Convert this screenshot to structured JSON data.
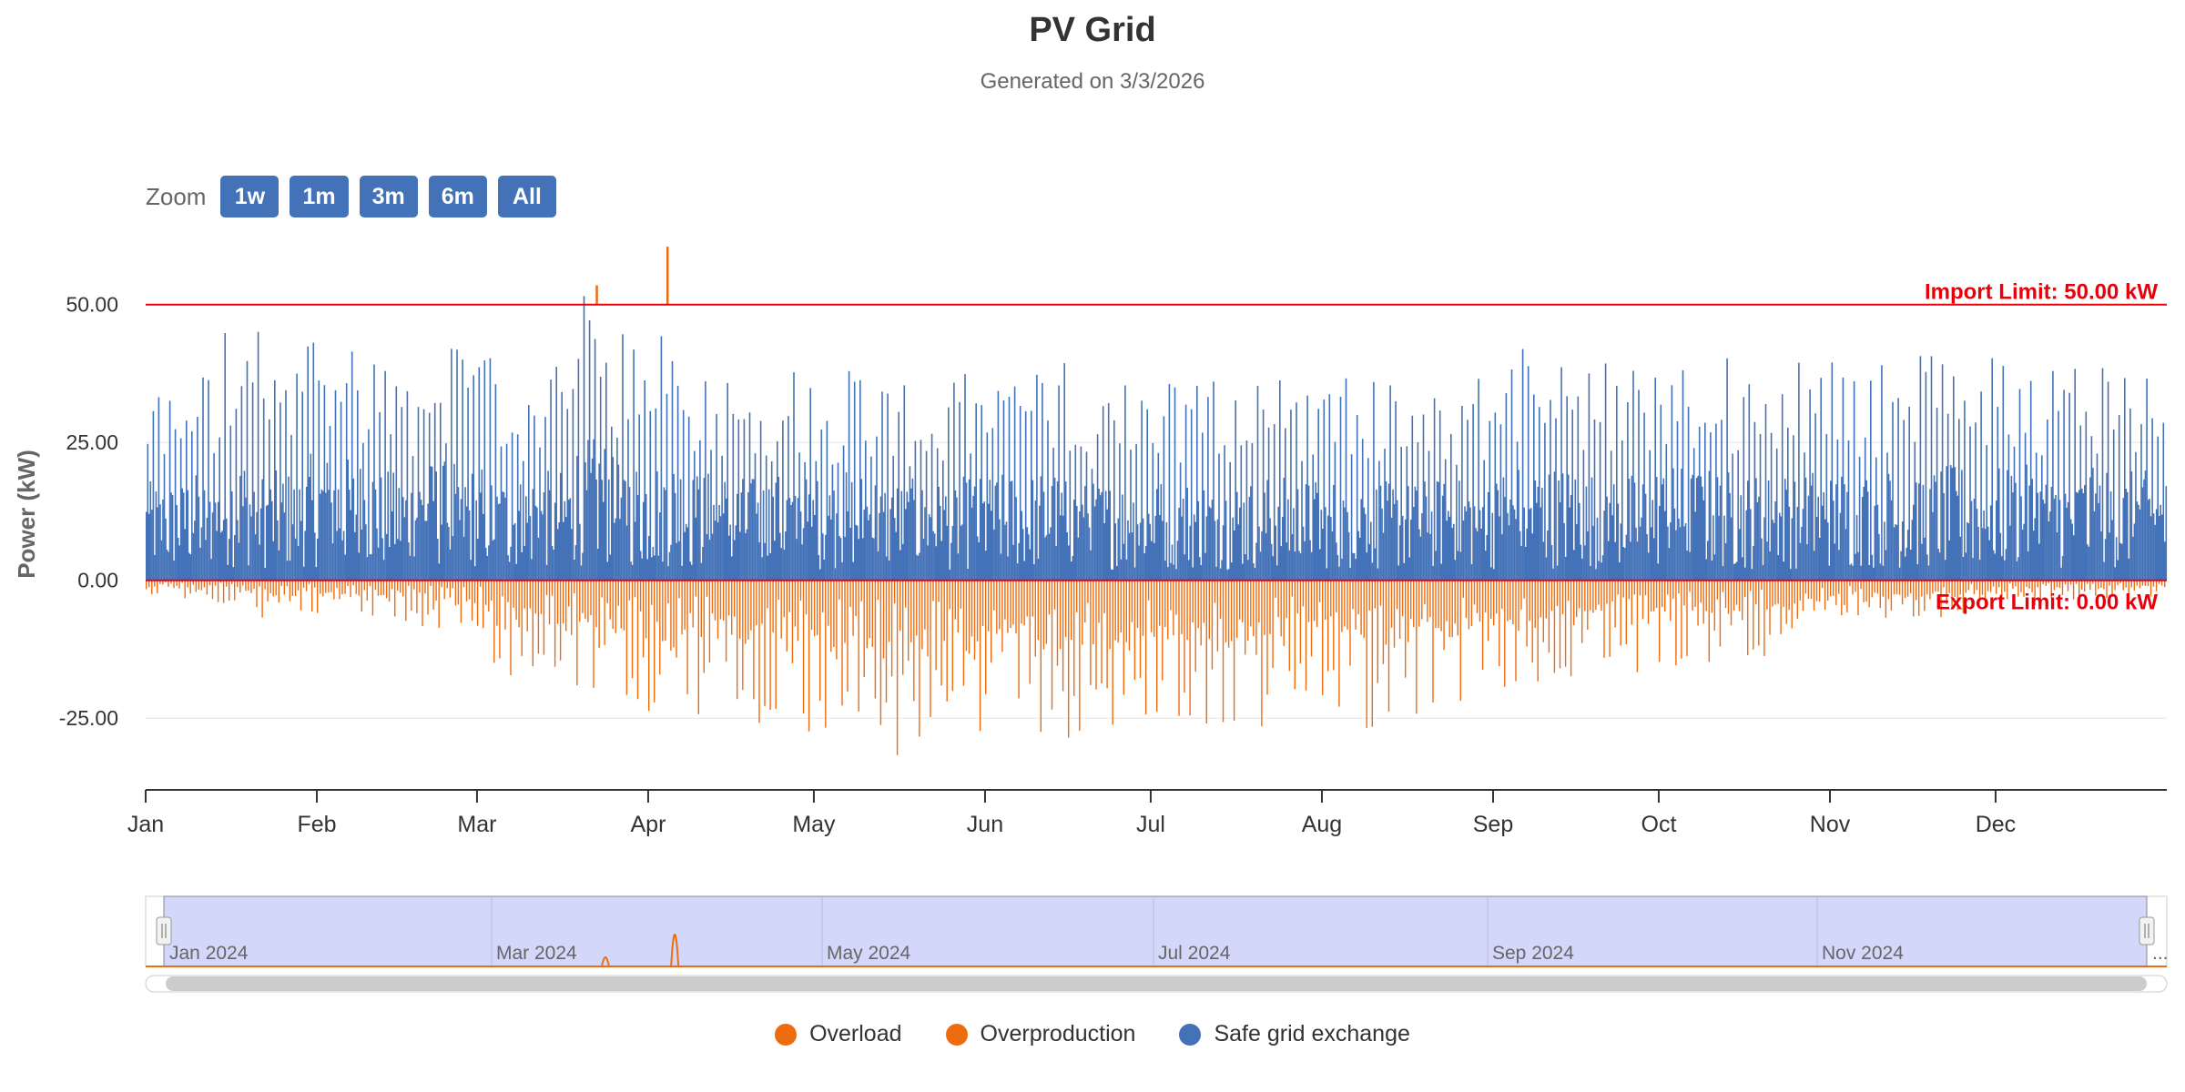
{
  "chart_data": {
    "type": "bar",
    "title": "PV Grid",
    "subtitle": "Generated on 3/3/2026",
    "ylabel": "Power (kW)",
    "xlabel": "",
    "ylim": [
      -38,
      62
    ],
    "y_ticks": [
      50,
      25,
      0,
      -25
    ],
    "y_tick_labels": [
      "50.00",
      "25.00",
      "0.00",
      "-25.00"
    ],
    "x_domain_days": [
      0,
      366
    ],
    "x_ticks": [
      {
        "label": "Jan",
        "day": 0
      },
      {
        "label": "Feb",
        "day": 31
      },
      {
        "label": "Mar",
        "day": 60
      },
      {
        "label": "Apr",
        "day": 91
      },
      {
        "label": "May",
        "day": 121
      },
      {
        "label": "Jun",
        "day": 152
      },
      {
        "label": "Jul",
        "day": 182
      },
      {
        "label": "Aug",
        "day": 213
      },
      {
        "label": "Sep",
        "day": 244
      },
      {
        "label": "Oct",
        "day": 274
      },
      {
        "label": "Nov",
        "day": 305
      },
      {
        "label": "Dec",
        "day": 335
      }
    ],
    "plot_lines": [
      {
        "label": "Import Limit: 50.00 kW",
        "value": 50,
        "color": "#e8000b"
      },
      {
        "label": "Export Limit: 0.00 kW",
        "value": 0,
        "color": "#e8000b"
      }
    ],
    "series": [
      {
        "name": "Overload",
        "color": "#ee6c0e",
        "points": [
          {
            "day": 81.5,
            "value": 53.5
          },
          {
            "day": 94.3,
            "value": 60.5
          }
        ]
      },
      {
        "name": "Overproduction",
        "color": "#ee6c0e",
        "weekly_min_kw": [
          -3,
          -4,
          -5,
          -7,
          -6,
          -7,
          -8,
          -9,
          -10,
          -19,
          -18,
          -20,
          -24,
          -28,
          -26,
          -27,
          -24,
          -28,
          -30,
          -33,
          -31,
          -31,
          -31,
          -29,
          -29,
          -28,
          -28,
          -28,
          -27,
          -25,
          -26,
          -27,
          -26,
          -25,
          -22,
          -21,
          -20,
          -17,
          -18,
          -17,
          -15,
          -14,
          -12,
          -10,
          -9,
          -8,
          -7,
          -6,
          -5,
          -4,
          -4,
          -3,
          -3
        ]
      },
      {
        "name": "Safe grid exchange",
        "color": "#4472b8",
        "weekly_peak_kw": [
          36,
          39,
          46,
          40,
          46,
          45,
          40,
          44,
          42,
          38,
          40,
          52,
          45,
          46,
          40,
          38,
          39,
          38,
          40,
          37,
          36,
          38,
          39,
          40,
          36,
          38,
          37,
          38,
          37,
          38,
          37,
          38,
          36,
          37,
          38,
          43,
          42,
          40,
          39,
          42,
          41,
          39,
          40,
          41,
          40,
          41,
          42,
          41,
          42,
          40,
          41,
          40,
          39
        ]
      }
    ],
    "legend": [
      "Overload",
      "Overproduction",
      "Safe grid exchange"
    ]
  },
  "zoom": {
    "label": "Zoom",
    "buttons": [
      "1w",
      "1m",
      "3m",
      "6m",
      "All"
    ]
  },
  "navigator": {
    "labels": [
      "Jan 2024",
      "Mar 2024",
      "May 2024",
      "Jul 2024",
      "Sep 2024",
      "Nov 2024"
    ],
    "overflow_marker": "..."
  },
  "colors": {
    "safe": "#4472b8",
    "overproduction": "#ee6c0e",
    "limit": "#e8000b",
    "navigator_fill": "#d3d7fa"
  }
}
